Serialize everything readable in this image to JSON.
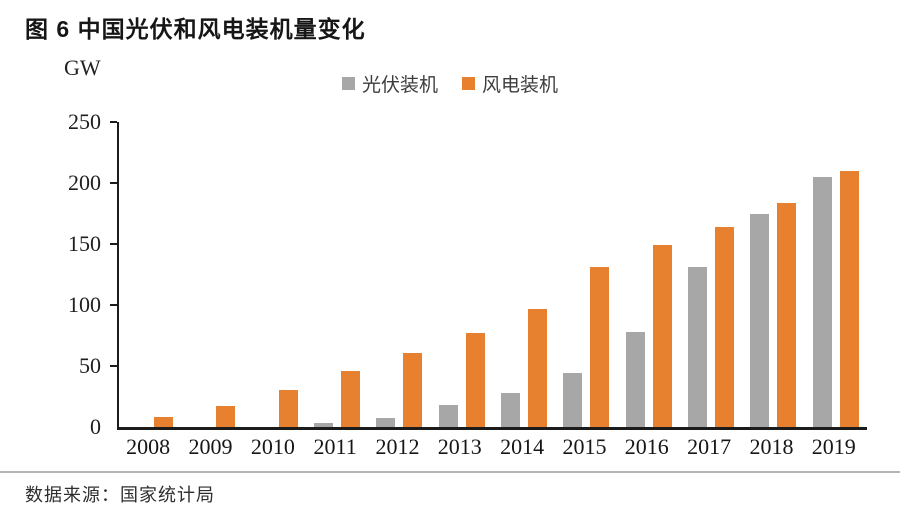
{
  "header": {
    "title": "图 6  中国光伏和风电装机量变化"
  },
  "footer": {
    "source": "数据来源：国家统计局"
  },
  "chart_data": {
    "type": "bar",
    "title": "图 6 中国光伏和风电装机量变化",
    "unit_label": "GW",
    "xlabel": "",
    "ylabel": "GW",
    "categories": [
      "2008",
      "2009",
      "2010",
      "2011",
      "2012",
      "2013",
      "2014",
      "2015",
      "2016",
      "2017",
      "2018",
      "2019"
    ],
    "series": [
      {
        "name": "光伏装机",
        "color": "#A7A7A7",
        "values": [
          0,
          0,
          0,
          3,
          7,
          18,
          28,
          44,
          78,
          131,
          175,
          205
        ]
      },
      {
        "name": "风电装机",
        "color": "#E8812F",
        "values": [
          8,
          17,
          30,
          46,
          61,
          77,
          97,
          131,
          149,
          164,
          184,
          210
        ]
      }
    ],
    "ylim": [
      0,
      250
    ],
    "yticks": [
      0,
      50,
      100,
      150,
      200,
      250
    ],
    "legend_position": "top-center",
    "grid": false,
    "axis_color": "#1c1c1c"
  }
}
